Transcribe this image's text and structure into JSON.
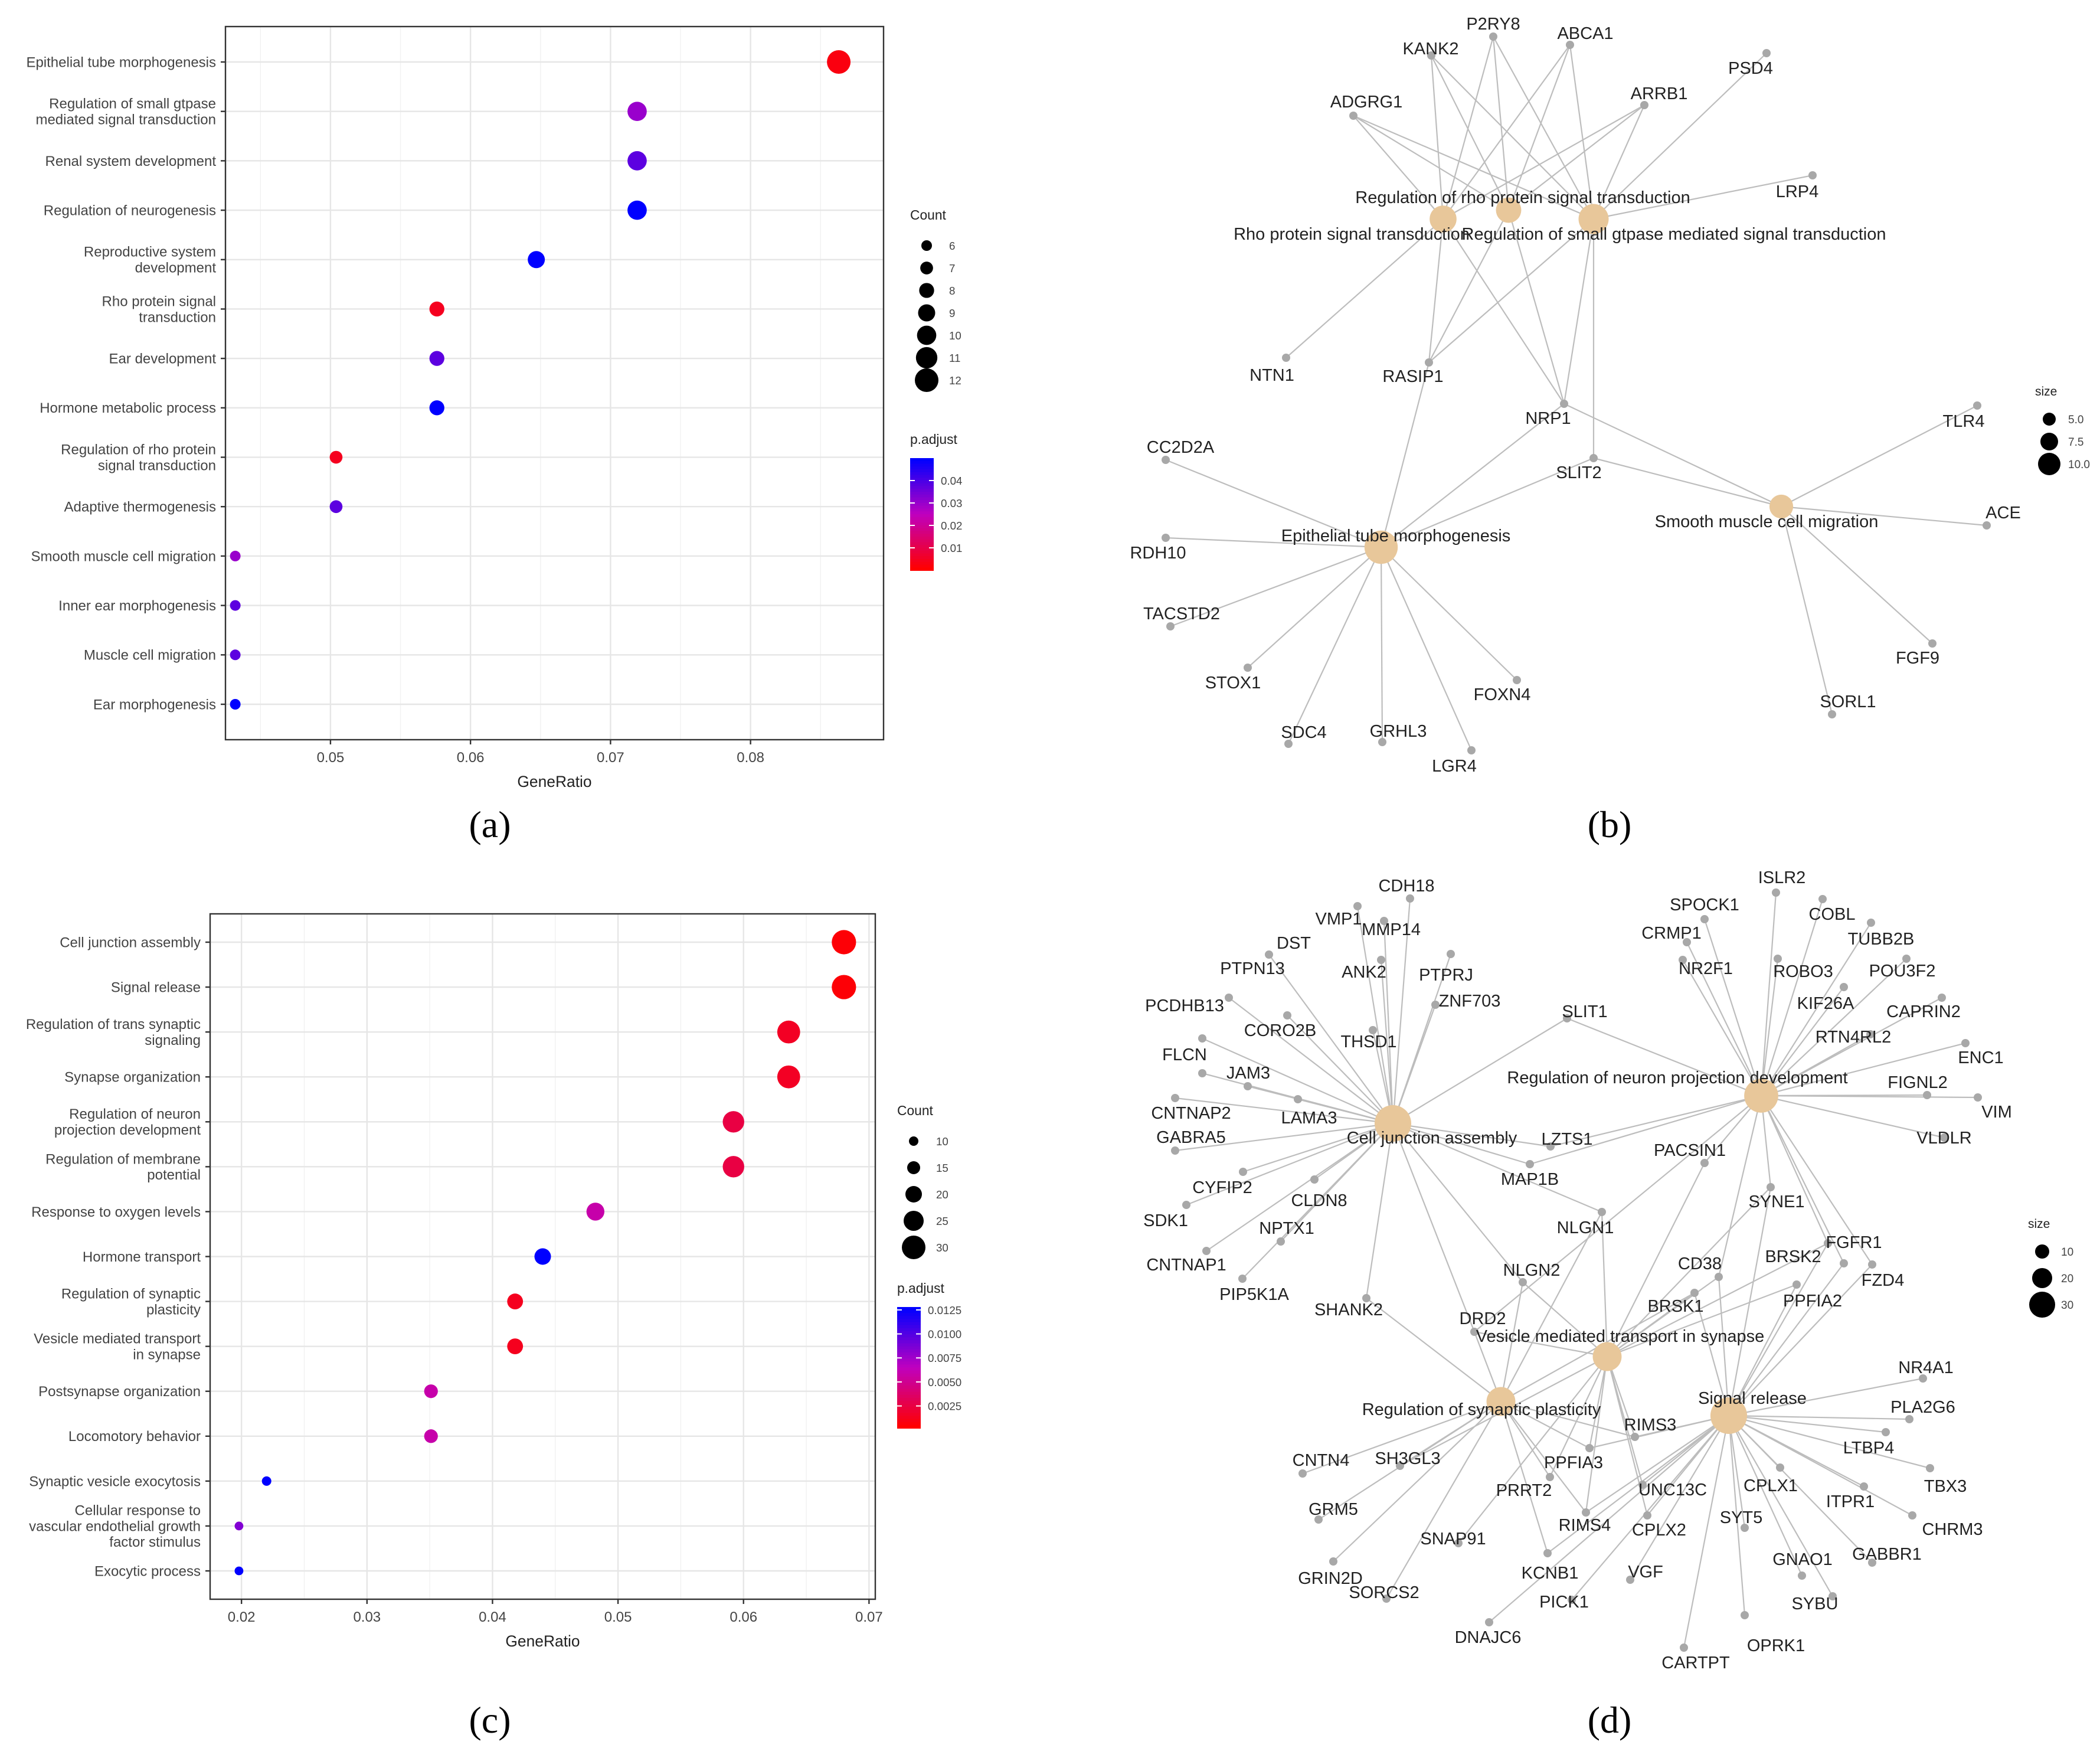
{
  "panel_labels": [
    "(a)",
    "(b)",
    "(c)",
    "(d)"
  ],
  "colors": {
    "low": "#ff0000",
    "mid": "#bf00bf",
    "high": "#0000ff",
    "node_term": "#e8c79a",
    "node_gene": "#a8a8a8",
    "edge": "#bdbdbd"
  },
  "chart_data": [
    {
      "type": "scatter",
      "panel": "a",
      "xlabel": "GeneRatio",
      "xlim": [
        0.0425,
        0.0895
      ],
      "xticks": [
        0.05,
        0.06,
        0.07,
        0.08
      ],
      "xtick_labels": [
        "0.05",
        "0.06",
        "0.07",
        "0.08"
      ],
      "categories": [
        "Epithelial tube morphogenesis",
        "Regulation of small gtpase\nmediated signal transduction",
        "Renal system development",
        "Regulation of neurogenesis",
        "Reproductive system\ndevelopment",
        "Rho protein signal\ntransduction",
        "Ear development",
        "Hormone metabolic process",
        "Regulation of rho protein\nsignal transduction",
        "Adaptive thermogenesis",
        "Smooth muscle cell migration",
        "Inner ear morphogenesis",
        "Muscle cell migration",
        "Ear morphogenesis"
      ],
      "x": [
        0.0863,
        0.0719,
        0.0719,
        0.0719,
        0.0647,
        0.0576,
        0.0576,
        0.0576,
        0.0504,
        0.0504,
        0.0432,
        0.0432,
        0.0432,
        0.0432
      ],
      "count": [
        12,
        10,
        10,
        10,
        9,
        8,
        8,
        8,
        7,
        7,
        6,
        6,
        6,
        6
      ],
      "p_adjust": [
        0.002,
        0.03,
        0.038,
        0.05,
        0.05,
        0.004,
        0.038,
        0.05,
        0.004,
        0.038,
        0.03,
        0.038,
        0.038,
        0.05
      ],
      "size_legend": {
        "title": "Count",
        "values": [
          6,
          7,
          8,
          9,
          10,
          11,
          12
        ],
        "labels": [
          "6",
          "7",
          "8",
          "9",
          "10",
          "11",
          "12"
        ]
      },
      "color_legend": {
        "title": "p.adjust",
        "min": 0.0,
        "max": 0.05,
        "ticks": [
          0.04,
          0.03,
          0.02,
          0.01
        ],
        "labels": [
          "0.04",
          "0.03",
          "0.02",
          "0.01"
        ]
      }
    },
    {
      "type": "network",
      "panel": "b",
      "size_legend": {
        "title": "size",
        "labels": [
          "5.0",
          "7.5",
          "10.0"
        ]
      },
      "terms": [
        {
          "id": "rho",
          "label": "Rho protein signal transduction",
          "size": 8
        },
        {
          "id": "regrho",
          "label": "Regulation of rho protein signal transduction",
          "size": 7
        },
        {
          "id": "smallg",
          "label": "Regulation of small gtpase mediated signal transduction",
          "size": 10
        },
        {
          "id": "epi",
          "label": "Epithelial tube morphogenesis",
          "size": 12
        },
        {
          "id": "smc",
          "label": "Smooth muscle cell migration",
          "size": 6
        }
      ],
      "genes": [
        "P2RY8",
        "ABCA1",
        "KANK2",
        "PSD4",
        "ADGRG1",
        "ARRB1",
        "LRP4",
        "NTN1",
        "RASIP1",
        "NRP1",
        "CC2D2A",
        "TLR4",
        "SLIT2",
        "ACE",
        "RDH10",
        "TACSTD2",
        "STOX1",
        "FOXN4",
        "SDC4",
        "GRHL3",
        "LGR4",
        "FGF9",
        "SORL1"
      ],
      "edges": [
        [
          "rho",
          "KANK2"
        ],
        [
          "rho",
          "P2RY8"
        ],
        [
          "rho",
          "ABCA1"
        ],
        [
          "rho",
          "ADGRG1"
        ],
        [
          "rho",
          "ARRB1"
        ],
        [
          "rho",
          "NTN1"
        ],
        [
          "rho",
          "RASIP1"
        ],
        [
          "rho",
          "NRP1"
        ],
        [
          "regrho",
          "KANK2"
        ],
        [
          "regrho",
          "P2RY8"
        ],
        [
          "regrho",
          "ABCA1"
        ],
        [
          "regrho",
          "ADGRG1"
        ],
        [
          "regrho",
          "ARRB1"
        ],
        [
          "regrho",
          "RASIP1"
        ],
        [
          "regrho",
          "NRP1"
        ],
        [
          "smallg",
          "KANK2"
        ],
        [
          "smallg",
          "P2RY8"
        ],
        [
          "smallg",
          "ABCA1"
        ],
        [
          "smallg",
          "ADGRG1"
        ],
        [
          "smallg",
          "ARRB1"
        ],
        [
          "smallg",
          "PSD4"
        ],
        [
          "smallg",
          "LRP4"
        ],
        [
          "smallg",
          "RASIP1"
        ],
        [
          "smallg",
          "NRP1"
        ],
        [
          "smallg",
          "SLIT2"
        ],
        [
          "epi",
          "RASIP1"
        ],
        [
          "epi",
          "NRP1"
        ],
        [
          "epi",
          "CC2D2A"
        ],
        [
          "epi",
          "RDH10"
        ],
        [
          "epi",
          "TACSTD2"
        ],
        [
          "epi",
          "STOX1"
        ],
        [
          "epi",
          "SDC4"
        ],
        [
          "epi",
          "GRHL3"
        ],
        [
          "epi",
          "LGR4"
        ],
        [
          "epi",
          "FOXN4"
        ],
        [
          "epi",
          "SLIT2"
        ],
        [
          "smc",
          "NRP1"
        ],
        [
          "smc",
          "TLR4"
        ],
        [
          "smc",
          "ACE"
        ],
        [
          "smc",
          "FGF9"
        ],
        [
          "smc",
          "SORL1"
        ],
        [
          "smc",
          "SLIT2"
        ]
      ]
    },
    {
      "type": "scatter",
      "panel": "c",
      "xlabel": "GeneRatio",
      "xlim": [
        0.0175,
        0.0705
      ],
      "xticks": [
        0.02,
        0.03,
        0.04,
        0.05,
        0.06,
        0.07
      ],
      "xtick_labels": [
        "0.02",
        "0.03",
        "0.04",
        "0.05",
        "0.06",
        "0.07"
      ],
      "categories": [
        "Cell junction assembly",
        "Signal release",
        "Regulation of trans synaptic\nsignaling",
        "Synapse organization",
        "Regulation of neuron\nprojection development",
        "Regulation of membrane\npotential",
        "Response to oxygen levels",
        "Hormone transport",
        "Regulation of synaptic\nplasticity",
        "Vesicle mediated transport\nin synapse",
        "Postsynapse organization",
        "Locomotory behavior",
        "Synaptic vesicle exocytosis",
        "Cellular response to\nvascular endothelial growth\nfactor stimulus",
        "Exocytic process"
      ],
      "x": [
        0.068,
        0.068,
        0.0636,
        0.0636,
        0.0592,
        0.0592,
        0.0482,
        0.044,
        0.0418,
        0.0418,
        0.0351,
        0.0351,
        0.022,
        0.0198,
        0.0198
      ],
      "count": [
        31,
        31,
        29,
        29,
        27,
        27,
        22,
        20,
        19,
        19,
        16,
        16,
        10,
        9,
        9
      ],
      "p_adjust": [
        0.0004,
        0.0004,
        0.0014,
        0.0014,
        0.0024,
        0.0024,
        0.0058,
        0.0128,
        0.0012,
        0.0012,
        0.0058,
        0.0058,
        0.0128,
        0.0085,
        0.0128
      ],
      "size_legend": {
        "title": "Count",
        "values": [
          10,
          15,
          20,
          25,
          30
        ],
        "labels": [
          "10",
          "15",
          "20",
          "25",
          "30"
        ]
      },
      "color_legend": {
        "title": "p.adjust",
        "min": 0.0002,
        "max": 0.0128,
        "ticks": [
          0.0125,
          0.01,
          0.0075,
          0.005,
          0.0025
        ],
        "labels": [
          "0.0125",
          "0.0100",
          "0.0075",
          "0.0050",
          "0.0025"
        ]
      }
    },
    {
      "type": "network",
      "panel": "d",
      "size_legend": {
        "title": "size",
        "labels": [
          "10",
          "20",
          "30"
        ]
      },
      "terms": [
        {
          "id": "cja",
          "label": "Cell junction assembly",
          "size": 31
        },
        {
          "id": "rnpd",
          "label": "Regulation of neuron projection development",
          "size": 27
        },
        {
          "id": "vmts",
          "label": "Vesicle mediated transport in synapse",
          "size": 19
        },
        {
          "id": "rsp",
          "label": "Regulation of synaptic plasticity",
          "size": 19
        },
        {
          "id": "sr",
          "label": "Signal release",
          "size": 31
        }
      ],
      "genes": [
        "CDH18",
        "VMP1",
        "MMP14",
        "DST",
        "ANK2",
        "PTPRJ",
        "PTPN13",
        "ZNF703",
        "PCDHB13",
        "CORO2B",
        "THSD1",
        "SLIT1",
        "FLCN",
        "JAM3",
        "CNTNAP2",
        "LAMA3",
        "GABRA5",
        "CYFIP2",
        "CLDN8",
        "SDK1",
        "NPTX1",
        "CNTNAP1",
        "PIP5K1A",
        "SHANK2",
        "LZTS1",
        "MAP1B",
        "NLGN1",
        "NLGN2",
        "DRD2",
        "PACSIN1",
        "SYNE1",
        "CD38",
        "BRSK2",
        "BRSK1",
        "FGFR1",
        "FZD4",
        "PPFIA2",
        "ISLR2",
        "SPOCK1",
        "COBL",
        "CRMP1",
        "TUBB2B",
        "NR2F1",
        "ROBO3",
        "POU3F2",
        "KIF26A",
        "CAPRIN2",
        "RTN4RL2",
        "ENC1",
        "FIGNL2",
        "VIM",
        "VLDLR",
        "NR4A1",
        "PLA2G6",
        "RIMS3",
        "LTBP4",
        "TBX3",
        "CNTN4",
        "SH3GL3",
        "PPFIA3",
        "CPLX1",
        "ITPR1",
        "GRM5",
        "PRRT2",
        "UNC13C",
        "CHRM3",
        "RIMS4",
        "CPLX2",
        "SYT5",
        "GABBR1",
        "SNAP91",
        "GNAO1",
        "GRIN2D",
        "KCNB1",
        "VGF",
        "SYBU",
        "SORCS2",
        "PICK1",
        "OPRK1",
        "DNAJC6",
        "CARTPT"
      ],
      "edges": [
        [
          "cja",
          "CDH18"
        ],
        [
          "cja",
          "VMP1"
        ],
        [
          "cja",
          "MMP14"
        ],
        [
          "cja",
          "DST"
        ],
        [
          "cja",
          "ANK2"
        ],
        [
          "cja",
          "PTPRJ"
        ],
        [
          "cja",
          "PTPN13"
        ],
        [
          "cja",
          "ZNF703"
        ],
        [
          "cja",
          "PCDHB13"
        ],
        [
          "cja",
          "CORO2B"
        ],
        [
          "cja",
          "THSD1"
        ],
        [
          "cja",
          "SLIT1"
        ],
        [
          "cja",
          "FLCN"
        ],
        [
          "cja",
          "JAM3"
        ],
        [
          "cja",
          "CNTNAP2"
        ],
        [
          "cja",
          "LAMA3"
        ],
        [
          "cja",
          "GABRA5"
        ],
        [
          "cja",
          "CYFIP2"
        ],
        [
          "cja",
          "CLDN8"
        ],
        [
          "cja",
          "SDK1"
        ],
        [
          "cja",
          "NPTX1"
        ],
        [
          "cja",
          "CNTNAP1"
        ],
        [
          "cja",
          "PIP5K1A"
        ],
        [
          "cja",
          "SHANK2"
        ],
        [
          "cja",
          "LZTS1"
        ],
        [
          "cja",
          "MAP1B"
        ],
        [
          "cja",
          "NLGN1"
        ],
        [
          "cja",
          "NLGN2"
        ],
        [
          "cja",
          "DRD2"
        ],
        [
          "rnpd",
          "SLIT1"
        ],
        [
          "rnpd",
          "ISLR2"
        ],
        [
          "rnpd",
          "SPOCK1"
        ],
        [
          "rnpd",
          "COBL"
        ],
        [
          "rnpd",
          "CRMP1"
        ],
        [
          "rnpd",
          "TUBB2B"
        ],
        [
          "rnpd",
          "NR2F1"
        ],
        [
          "rnpd",
          "ROBO3"
        ],
        [
          "rnpd",
          "POU3F2"
        ],
        [
          "rnpd",
          "KIF26A"
        ],
        [
          "rnpd",
          "CAPRIN2"
        ],
        [
          "rnpd",
          "RTN4RL2"
        ],
        [
          "rnpd",
          "ENC1"
        ],
        [
          "rnpd",
          "FIGNL2"
        ],
        [
          "rnpd",
          "VIM"
        ],
        [
          "rnpd",
          "VLDLR"
        ],
        [
          "rnpd",
          "LZTS1"
        ],
        [
          "rnpd",
          "MAP1B"
        ],
        [
          "rnpd",
          "PACSIN1"
        ],
        [
          "rnpd",
          "SYNE1"
        ],
        [
          "rnpd",
          "CD38"
        ],
        [
          "rnpd",
          "BRSK2"
        ],
        [
          "rnpd",
          "FGFR1"
        ],
        [
          "rnpd",
          "FZD4"
        ],
        [
          "rnpd",
          "DRD2"
        ],
        [
          "vmts",
          "NLGN1"
        ],
        [
          "vmts",
          "NLGN2"
        ],
        [
          "vmts",
          "DRD2"
        ],
        [
          "vmts",
          "PACSIN1"
        ],
        [
          "vmts",
          "SYNE1"
        ],
        [
          "vmts",
          "CD38"
        ],
        [
          "vmts",
          "BRSK2"
        ],
        [
          "vmts",
          "BRSK1"
        ],
        [
          "vmts",
          "PPFIA2"
        ],
        [
          "vmts",
          "RIMS3"
        ],
        [
          "vmts",
          "PPFIA3"
        ],
        [
          "vmts",
          "UNC13C"
        ],
        [
          "vmts",
          "RIMS4"
        ],
        [
          "vmts",
          "CPLX2"
        ],
        [
          "vmts",
          "PRRT2"
        ],
        [
          "vmts",
          "SNAP91"
        ],
        [
          "vmts",
          "SH3GL3"
        ],
        [
          "rsp",
          "SHANK2"
        ],
        [
          "rsp",
          "NLGN1"
        ],
        [
          "rsp",
          "NLGN2"
        ],
        [
          "rsp",
          "DRD2"
        ],
        [
          "rsp",
          "BRSK1"
        ],
        [
          "rsp",
          "CNTN4"
        ],
        [
          "rsp",
          "SH3GL3"
        ],
        [
          "rsp",
          "GRM5"
        ],
        [
          "rsp",
          "GRIN2D"
        ],
        [
          "rsp",
          "SORCS2"
        ],
        [
          "rsp",
          "PRRT2"
        ],
        [
          "rsp",
          "KCNB1"
        ],
        [
          "rsp",
          "RIMS3"
        ],
        [
          "rsp",
          "PPFIA3"
        ],
        [
          "rsp",
          "RIMS4"
        ],
        [
          "sr",
          "CD38"
        ],
        [
          "sr",
          "BRSK2"
        ],
        [
          "sr",
          "BRSK1"
        ],
        [
          "sr",
          "PPFIA2"
        ],
        [
          "sr",
          "NR4A1"
        ],
        [
          "sr",
          "PLA2G6"
        ],
        [
          "sr",
          "RIMS3"
        ],
        [
          "sr",
          "LTBP4"
        ],
        [
          "sr",
          "TBX3"
        ],
        [
          "sr",
          "PPFIA3"
        ],
        [
          "sr",
          "CPLX1"
        ],
        [
          "sr",
          "ITPR1"
        ],
        [
          "sr",
          "UNC13C"
        ],
        [
          "sr",
          "CHRM3"
        ],
        [
          "sr",
          "RIMS4"
        ],
        [
          "sr",
          "CPLX2"
        ],
        [
          "sr",
          "SYT5"
        ],
        [
          "sr",
          "GABBR1"
        ],
        [
          "sr",
          "GNAO1"
        ],
        [
          "sr",
          "KCNB1"
        ],
        [
          "sr",
          "VGF"
        ],
        [
          "sr",
          "SYBU"
        ],
        [
          "sr",
          "PICK1"
        ],
        [
          "sr",
          "OPRK1"
        ],
        [
          "sr",
          "DNAJC6"
        ],
        [
          "sr",
          "CARTPT"
        ],
        [
          "sr",
          "FGFR1"
        ],
        [
          "sr",
          "FZD4"
        ],
        [
          "sr",
          "SYNE1"
        ]
      ]
    }
  ]
}
